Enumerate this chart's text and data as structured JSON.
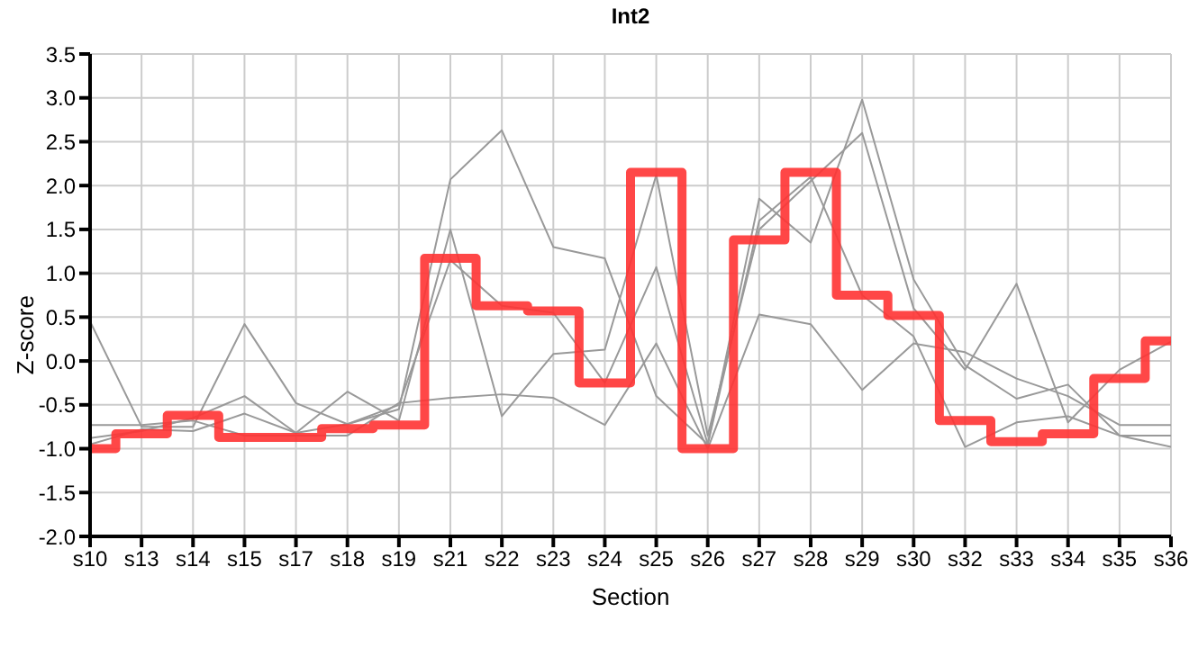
{
  "chart_data": {
    "type": "line",
    "title": "Int2",
    "xlabel": "Section",
    "ylabel": "Z-score",
    "categories": [
      "s10",
      "s13",
      "s14",
      "s15",
      "s17",
      "s18",
      "s19",
      "s21",
      "s22",
      "s23",
      "s24",
      "s25",
      "s26",
      "s27",
      "s28",
      "s29",
      "s30",
      "s32",
      "s33",
      "s34",
      "s35",
      "s36"
    ],
    "series": [
      {
        "type": "line",
        "color": "#999999",
        "values": [
          0.45,
          -0.75,
          -0.75,
          0.42,
          -0.48,
          -0.72,
          -0.55,
          2.07,
          2.63,
          1.3,
          1.17,
          -0.4,
          -0.95,
          1.85,
          1.35,
          2.98,
          0.93,
          -0.05,
          -0.43,
          -0.27,
          -0.85,
          -0.85
        ]
      },
      {
        "type": "line",
        "color": "#999999",
        "values": [
          -0.88,
          -0.8,
          -0.65,
          -0.4,
          -0.82,
          -0.35,
          -0.68,
          1.5,
          -0.63,
          0.08,
          0.13,
          2.12,
          -0.85,
          1.5,
          2.05,
          2.6,
          0.6,
          -0.1,
          0.88,
          -0.7,
          -0.1,
          0.22
        ]
      },
      {
        "type": "line",
        "color": "#999999",
        "values": [
          -0.95,
          -0.78,
          -0.8,
          -0.6,
          -0.82,
          -0.72,
          -0.5,
          1.15,
          0.63,
          0.55,
          -0.25,
          1.07,
          -0.95,
          1.6,
          2.1,
          0.75,
          0.28,
          -0.98,
          -0.7,
          -0.63,
          -0.85,
          -0.98
        ]
      },
      {
        "type": "line",
        "color": "#999999",
        "values": [
          -0.73,
          -0.73,
          -0.68,
          -0.85,
          -0.85,
          -0.85,
          -0.48,
          -0.42,
          -0.38,
          -0.42,
          -0.73,
          0.2,
          -1.0,
          0.53,
          0.42,
          -0.33,
          0.2,
          0.1,
          -0.2,
          -0.4,
          -0.73,
          -0.73
        ]
      },
      {
        "type": "step",
        "color": "#ff3333",
        "values": [
          -1.0,
          -0.83,
          -0.62,
          -0.87,
          -0.87,
          -0.77,
          -0.73,
          1.17,
          0.63,
          0.57,
          -0.25,
          2.15,
          -1.0,
          1.38,
          2.15,
          0.75,
          0.52,
          -0.68,
          -0.92,
          -0.83,
          -0.2,
          0.23
        ]
      }
    ],
    "ylim": [
      -2.0,
      3.5
    ],
    "yticks": [
      {
        "value": -2,
        "label": "-2.0"
      },
      -1.5,
      {
        "value": -1,
        "label": "-1.0"
      },
      -0.5,
      {
        "value": 0,
        "label": "0.0"
      },
      0.5,
      {
        "value": 1,
        "label": "1.0"
      },
      1.5,
      {
        "value": 2,
        "label": "2.0"
      },
      2.5,
      {
        "value": 3,
        "label": "3.0"
      },
      3.5
    ],
    "grid": true,
    "legend": false,
    "marker": "none",
    "line_style": "solid"
  }
}
